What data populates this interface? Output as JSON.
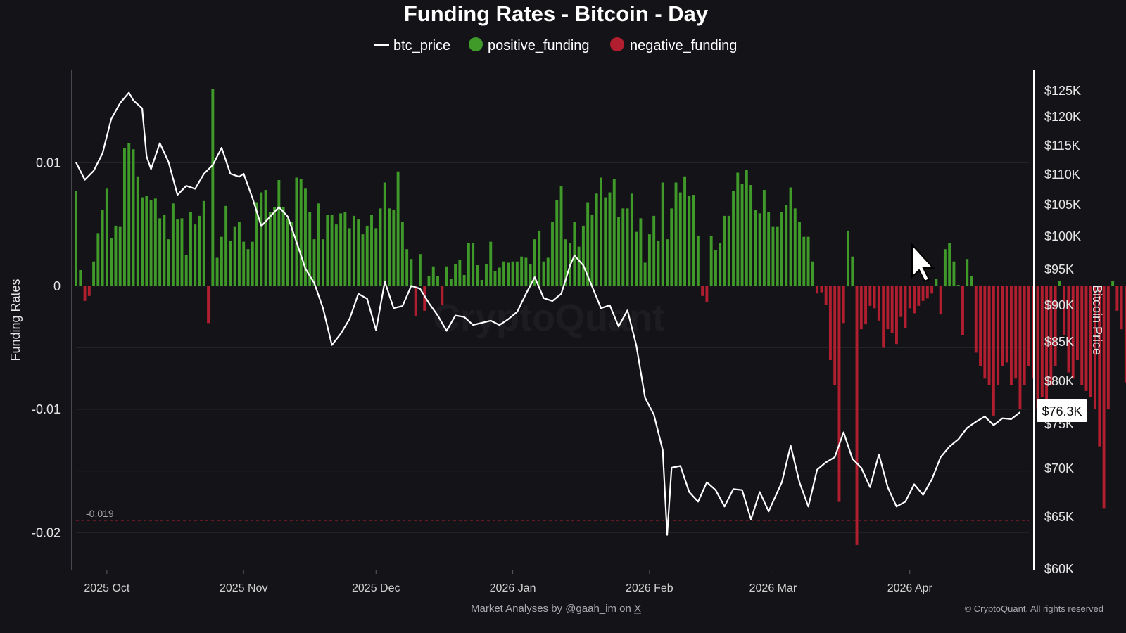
{
  "title": "Funding Rates - Bitcoin - Day",
  "legend": [
    {
      "label": "btc_price",
      "shape": "line",
      "color": "#ffffff"
    },
    {
      "label": "positive_funding",
      "shape": "dot",
      "color": "#3f9a2a"
    },
    {
      "label": "negative_funding",
      "shape": "dot",
      "color": "#b01e2f"
    }
  ],
  "axes": {
    "left_title": "Funding Rates",
    "right_title": "Bitcoin Price",
    "left_ticks": [
      {
        "value": 0.01,
        "label": "0.01"
      },
      {
        "value": 0,
        "label": "0"
      },
      {
        "value": -0.01,
        "label": "-0.01"
      },
      {
        "value": -0.02,
        "label": "-0.02"
      }
    ],
    "right_ticks": [
      {
        "value": 125000,
        "label": "$125K"
      },
      {
        "value": 120000,
        "label": "$120K"
      },
      {
        "value": 115000,
        "label": "$115K"
      },
      {
        "value": 110000,
        "label": "$110K"
      },
      {
        "value": 105000,
        "label": "$105K"
      },
      {
        "value": 100000,
        "label": "$100K"
      },
      {
        "value": 95000,
        "label": "$95K"
      },
      {
        "value": 90000,
        "label": "$90K"
      },
      {
        "value": 85000,
        "label": "$85K"
      },
      {
        "value": 80000,
        "label": "$80K"
      },
      {
        "value": 75000,
        "label": "$75K"
      },
      {
        "value": 70000,
        "label": "$70K"
      },
      {
        "value": 65000,
        "label": "$65K"
      },
      {
        "value": 60000,
        "label": "$60K"
      }
    ],
    "x_ticks": [
      {
        "date": "2025-10-01",
        "label": "2025 Oct"
      },
      {
        "date": "2025-11-01",
        "label": "2025 Nov"
      },
      {
        "date": "2025-12-01",
        "label": "2025 Dec"
      },
      {
        "date": "2026-01-01",
        "label": "2026 Jan"
      },
      {
        "date": "2026-02-01",
        "label": "2026 Feb"
      },
      {
        "date": "2026-03-01",
        "label": "2026 Mar"
      },
      {
        "date": "2026-04-01",
        "label": "2026 Apr"
      }
    ]
  },
  "reference_line": {
    "value": -0.019,
    "label": "-0.019",
    "color": "#b01e2f"
  },
  "current_price_label": "$76.3K",
  "footer": {
    "attribution_prefix": "Market Analyses by @gaah_im on ",
    "attribution_link": "X",
    "copyright": "© CryptoQuant. All rights reserved"
  },
  "watermark": "CryptoQuant",
  "colors": {
    "background": "#141418",
    "positive": "#3f9a2a",
    "negative": "#b01e2f",
    "price_line": "#ffffff",
    "grid": "#23232a"
  },
  "chart_data": {
    "type": "bar+line",
    "title": "Funding Rates - Bitcoin - Day",
    "left_axis": {
      "label": "Funding Rates",
      "range": [
        -0.023,
        0.0175
      ]
    },
    "right_axis": {
      "label": "Bitcoin Price",
      "range": [
        59000,
        128000
      ]
    },
    "x_range": [
      "2025-09-24",
      "2026-04-28"
    ],
    "grid": true,
    "legend_position": "top-center",
    "funding_rate": {
      "start_date": "2025-09-24",
      "interval": "day",
      "values": [
        0.0077,
        0.0013,
        -0.0012,
        -0.0008,
        0.002,
        0.0043,
        0.0062,
        0.0079,
        0.0039,
        0.0049,
        0.0048,
        0.0112,
        0.0116,
        0.0111,
        0.0089,
        0.0072,
        0.0073,
        0.007,
        0.0071,
        0.0055,
        0.0058,
        0.0038,
        0.0067,
        0.0054,
        0.0055,
        0.0025,
        0.006,
        0.005,
        0.0057,
        0.0069,
        -0.003,
        0.016,
        0.0023,
        0.004,
        0.0065,
        0.0037,
        0.0048,
        0.0052,
        0.0036,
        0.003,
        0.0036,
        0.0068,
        0.0076,
        0.0078,
        0.006,
        0.0064,
        0.0086,
        0.0064,
        0.0055,
        0.0052,
        0.0088,
        0.0087,
        0.0079,
        0.006,
        0.0038,
        0.0067,
        0.0038,
        0.0058,
        0.0058,
        0.005,
        0.0059,
        0.006,
        0.0047,
        0.0057,
        0.0054,
        0.0042,
        0.0049,
        0.0058,
        0.0047,
        0.0063,
        0.0084,
        0.0063,
        0.0062,
        0.0093,
        0.0052,
        0.003,
        0.0022,
        -0.0024,
        0.0026,
        -0.002,
        0.0008,
        0.0016,
        0.0008,
        -0.0015,
        0.0016,
        0.0006,
        0.0018,
        0.0021,
        0.0009,
        0.0035,
        0.0035,
        0.0017,
        0.0005,
        0.0018,
        0.0036,
        0.0012,
        0.0015,
        0.002,
        0.0019,
        0.002,
        0.002,
        0.0024,
        0.0023,
        0.0018,
        0.0038,
        0.0045,
        0.002,
        0.0023,
        0.0052,
        0.007,
        0.0081,
        0.0038,
        0.0035,
        0.0052,
        0.0032,
        0.0049,
        0.0068,
        0.0058,
        0.0075,
        0.0088,
        0.0072,
        0.0076,
        0.0087,
        0.0056,
        0.0063,
        0.0063,
        0.0075,
        0.0044,
        0.0055,
        0.0019,
        0.0042,
        0.0057,
        0.0037,
        0.0084,
        0.0038,
        0.0063,
        0.0084,
        0.0076,
        0.0089,
        0.0073,
        0.0074,
        0.0041,
        -0.0008,
        -0.0013,
        0.0041,
        0.0029,
        0.0035,
        0.0057,
        0.0057,
        0.0077,
        0.0092,
        0.0083,
        0.0094,
        0.0082,
        0.0062,
        0.0059,
        0.0078,
        0.006,
        0.0048,
        0.0048,
        0.006,
        0.0066,
        0.008,
        0.0063,
        0.0052,
        0.004,
        0.004,
        0.002,
        -0.0006,
        -0.0005,
        -0.0015,
        -0.006,
        -0.008,
        -0.0175,
        -0.003,
        0.0045,
        0.0024,
        -0.021,
        -0.0035,
        -0.0031,
        -0.0016,
        -0.0018,
        -0.0028,
        -0.005,
        -0.0035,
        -0.0038,
        -0.0047,
        -0.0025,
        -0.0034,
        -0.0018,
        -0.0022,
        -0.0016,
        -0.0012,
        -0.001,
        -0.0006,
        0.0006,
        -0.0023,
        0.003,
        0.0035,
        0.002,
        0.0001,
        -0.004,
        0.0022,
        0.0008,
        -0.0054,
        -0.0065,
        -0.0075,
        -0.008,
        -0.0105,
        -0.008,
        -0.0065,
        -0.0062,
        -0.008,
        -0.0075,
        -0.01,
        -0.008,
        -0.0065,
        -0.0075,
        -0.01,
        -0.009,
        -0.0095,
        -0.008,
        -0.0065,
        0.0004,
        -0.004,
        -0.007,
        -0.0075,
        -0.006,
        -0.008,
        -0.0085,
        -0.009,
        -0.01,
        -0.013,
        -0.018,
        -0.01,
        0.0004,
        -0.002,
        -0.0035,
        -0.0078,
        0.0005,
        -0.002,
        -0.008,
        -0.0025,
        -0.0038,
        -0.01,
        0.0006,
        -0.002,
        -0.007,
        -0.0105,
        0.0002,
        -0.001,
        0.0018,
        0.0052,
        0.0035,
        0.0041,
        0.0029,
        0.0026,
        -0.003,
        0.0018,
        0.0018,
        0.0035,
        0.0045,
        0.0026,
        -0.0023,
        -0.0025,
        0.0005,
        -0.001,
        0.0029,
        -0.0012,
        -0.0068,
        -0.0053,
        -0.0068,
        -0.0054,
        -0.001,
        -0.003,
        -0.0035,
        -0.002,
        -0.005,
        -0.01,
        -0.0105,
        -0.0108,
        -0.0068,
        -0.0035,
        -0.0098,
        -0.0092,
        -0.0075,
        -0.0053,
        -0.0065,
        -0.0084,
        -0.01,
        -0.0074,
        -0.0075,
        -0.0062,
        -0.0088,
        -0.0165,
        -0.0134,
        -0.0155,
        -0.0205,
        -0.0181,
        -0.0123,
        -0.0075,
        -0.0198
      ]
    },
    "btc_price": {
      "points": [
        [
          "2025-09-24",
          112000
        ],
        [
          "2025-09-26",
          109000
        ],
        [
          "2025-09-28",
          110500
        ],
        [
          "2025-09-30",
          113500
        ],
        [
          "2025-10-02",
          119500
        ],
        [
          "2025-10-04",
          122500
        ],
        [
          "2025-10-06",
          124500
        ],
        [
          "2025-10-07",
          123000
        ],
        [
          "2025-10-09",
          121500
        ],
        [
          "2025-10-10",
          113000
        ],
        [
          "2025-10-11",
          110800
        ],
        [
          "2025-10-13",
          115300
        ],
        [
          "2025-10-15",
          112000
        ],
        [
          "2025-10-17",
          106500
        ],
        [
          "2025-10-19",
          108000
        ],
        [
          "2025-10-21",
          107500
        ],
        [
          "2025-10-23",
          110000
        ],
        [
          "2025-10-25",
          111500
        ],
        [
          "2025-10-27",
          114500
        ],
        [
          "2025-10-29",
          110000
        ],
        [
          "2025-10-31",
          109500
        ],
        [
          "2025-11-01",
          110000
        ],
        [
          "2025-11-03",
          106000
        ],
        [
          "2025-11-05",
          101500
        ],
        [
          "2025-11-07",
          103000
        ],
        [
          "2025-11-09",
          104500
        ],
        [
          "2025-11-11",
          103000
        ],
        [
          "2025-11-13",
          99000
        ],
        [
          "2025-11-15",
          95000
        ],
        [
          "2025-11-17",
          93000
        ],
        [
          "2025-11-19",
          89500
        ],
        [
          "2025-11-21",
          84500
        ],
        [
          "2025-11-23",
          86000
        ],
        [
          "2025-11-25",
          88000
        ],
        [
          "2025-11-27",
          91500
        ],
        [
          "2025-11-29",
          90800
        ],
        [
          "2025-12-01",
          86500
        ],
        [
          "2025-12-03",
          93200
        ],
        [
          "2025-12-05",
          89500
        ],
        [
          "2025-12-07",
          89800
        ],
        [
          "2025-12-09",
          92600
        ],
        [
          "2025-12-11",
          92200
        ],
        [
          "2025-12-13",
          90200
        ],
        [
          "2025-12-15",
          88500
        ],
        [
          "2025-12-17",
          86400
        ],
        [
          "2025-12-19",
          88500
        ],
        [
          "2025-12-21",
          88300
        ],
        [
          "2025-12-23",
          87200
        ],
        [
          "2025-12-25",
          87500
        ],
        [
          "2025-12-27",
          87800
        ],
        [
          "2025-12-29",
          87200
        ],
        [
          "2025-12-31",
          88000
        ],
        [
          "2026-01-02",
          89000
        ],
        [
          "2026-01-04",
          91500
        ],
        [
          "2026-01-06",
          93800
        ],
        [
          "2026-01-08",
          90900
        ],
        [
          "2026-01-10",
          90500
        ],
        [
          "2026-01-12",
          91500
        ],
        [
          "2026-01-14",
          95500
        ],
        [
          "2026-01-15",
          97000
        ],
        [
          "2026-01-17",
          95500
        ],
        [
          "2026-01-19",
          92500
        ],
        [
          "2026-01-21",
          89500
        ],
        [
          "2026-01-23",
          89900
        ],
        [
          "2026-01-25",
          87000
        ],
        [
          "2026-01-27",
          89200
        ],
        [
          "2026-01-29",
          84500
        ],
        [
          "2026-01-31",
          78000
        ],
        [
          "2026-02-02",
          76000
        ],
        [
          "2026-02-04",
          72000
        ],
        [
          "2026-02-05",
          63200
        ],
        [
          "2026-02-06",
          70000
        ],
        [
          "2026-02-08",
          70200
        ],
        [
          "2026-02-10",
          67500
        ],
        [
          "2026-02-12",
          66500
        ],
        [
          "2026-02-14",
          68500
        ],
        [
          "2026-02-16",
          67700
        ],
        [
          "2026-02-18",
          66000
        ],
        [
          "2026-02-20",
          67800
        ],
        [
          "2026-02-22",
          67700
        ],
        [
          "2026-02-24",
          64700
        ],
        [
          "2026-02-26",
          67500
        ],
        [
          "2026-02-28",
          65500
        ],
        [
          "2026-03-01",
          66500
        ],
        [
          "2026-03-03",
          68500
        ],
        [
          "2026-03-05",
          72500
        ],
        [
          "2026-03-07",
          68500
        ],
        [
          "2026-03-09",
          66000
        ],
        [
          "2026-03-11",
          69800
        ],
        [
          "2026-03-13",
          70600
        ],
        [
          "2026-03-15",
          71200
        ],
        [
          "2026-03-17",
          74000
        ],
        [
          "2026-03-19",
          71000
        ],
        [
          "2026-03-21",
          70000
        ],
        [
          "2026-03-23",
          68000
        ],
        [
          "2026-03-25",
          71500
        ],
        [
          "2026-03-27",
          68000
        ],
        [
          "2026-03-29",
          66000
        ],
        [
          "2026-03-31",
          66500
        ],
        [
          "2026-04-02",
          68300
        ],
        [
          "2026-04-04",
          67200
        ],
        [
          "2026-04-06",
          68800
        ],
        [
          "2026-04-08",
          71200
        ],
        [
          "2026-04-10",
          72400
        ],
        [
          "2026-04-12",
          73200
        ],
        [
          "2026-04-14",
          74500
        ],
        [
          "2026-04-16",
          75200
        ],
        [
          "2026-04-18",
          75800
        ],
        [
          "2026-04-20",
          74800
        ],
        [
          "2026-04-22",
          75600
        ],
        [
          "2026-04-24",
          75500
        ],
        [
          "2026-04-26",
          76300
        ]
      ]
    }
  }
}
